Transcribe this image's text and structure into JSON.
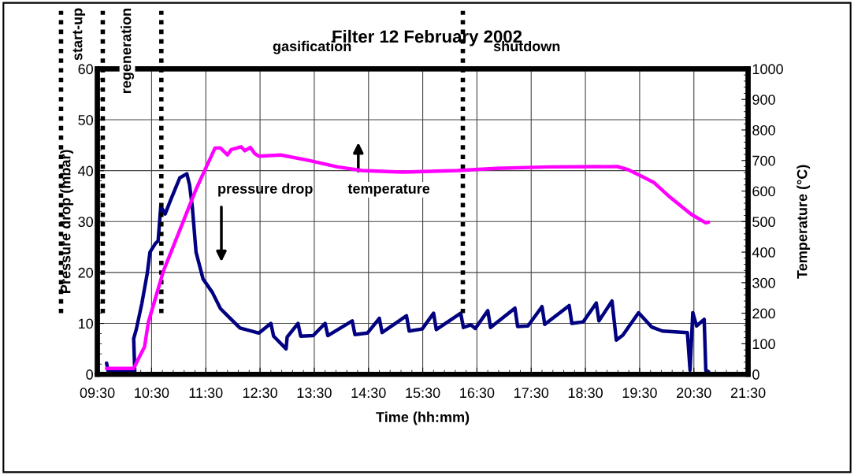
{
  "chart_data": {
    "type": "line",
    "title": "Filter 12 February 2002",
    "xlabel": "Time (hh:mm)",
    "ylabel": "Pressure drop (mbar)",
    "y2label": "Temperature (°C)",
    "xlim": [
      9.5,
      21.5
    ],
    "xticks": [
      {
        "value": 9.5,
        "label": "09:30"
      },
      {
        "value": 10.5,
        "label": "10:30"
      },
      {
        "value": 11.5,
        "label": "11:30"
      },
      {
        "value": 12.5,
        "label": "12:30"
      },
      {
        "value": 13.5,
        "label": "13:30"
      },
      {
        "value": 14.5,
        "label": "14:30"
      },
      {
        "value": 15.5,
        "label": "15:30"
      },
      {
        "value": 16.5,
        "label": "16:30"
      },
      {
        "value": 17.5,
        "label": "17:30"
      },
      {
        "value": 18.5,
        "label": "18:30"
      },
      {
        "value": 19.5,
        "label": "19:30"
      },
      {
        "value": 20.5,
        "label": "20:30"
      },
      {
        "value": 21.5,
        "label": "21:30"
      }
    ],
    "ylim": [
      0,
      60
    ],
    "yticks": [
      0,
      10,
      20,
      30,
      40,
      50,
      60
    ],
    "y2lim": [
      0,
      1000
    ],
    "y2ticks": [
      0,
      100,
      200,
      300,
      400,
      500,
      600,
      700,
      800,
      900,
      1000
    ],
    "grid": true,
    "legend": false,
    "marker": "none",
    "line_style": "solid",
    "series": [
      {
        "color": "#000080",
        "x": [
          9.67,
          9.7,
          9.75,
          10.19,
          10.17,
          10.22,
          10.32,
          10.42,
          10.47,
          10.57,
          10.62,
          10.67,
          10.75,
          10.85,
          11.02,
          11.15,
          11.2,
          11.25,
          11.32,
          11.45,
          11.62,
          11.77,
          11.92,
          12.13,
          12.48,
          12.7,
          12.75,
          12.98,
          13.0,
          13.2,
          13.25,
          13.48,
          13.7,
          13.75,
          14.2,
          14.25,
          14.48,
          14.7,
          14.75,
          15.2,
          15.25,
          15.49,
          15.7,
          15.75,
          16.2,
          16.25,
          16.39,
          16.47,
          16.7,
          16.75,
          17.2,
          17.25,
          17.44,
          17.7,
          17.75,
          18.2,
          18.25,
          18.46,
          18.7,
          18.75,
          18.99,
          19.07,
          19.19,
          19.48,
          19.72,
          19.92,
          20.38,
          20.43,
          20.48,
          20.55,
          20.69,
          20.72,
          20.77
        ],
        "values": [
          2.2,
          0.5,
          0.5,
          0.5,
          7,
          8.9,
          13.9,
          19.8,
          24,
          25.7,
          26.2,
          33,
          31.5,
          34.2,
          38.6,
          39.4,
          37.2,
          33,
          24,
          18.7,
          16.1,
          12.9,
          11.3,
          9.1,
          8.1,
          10,
          7.5,
          5,
          7.3,
          10,
          7.5,
          7.6,
          10,
          7.6,
          10.5,
          7.8,
          8.1,
          11,
          8.2,
          11.5,
          8.5,
          8.9,
          12,
          8.8,
          12,
          9.2,
          9.7,
          9,
          12.5,
          9.2,
          13,
          9.4,
          9.5,
          13.3,
          9.8,
          13.5,
          10,
          10.3,
          14,
          10.5,
          14.4,
          6.7,
          7.7,
          12.1,
          9.3,
          8.5,
          8.2,
          0.8,
          12.1,
          9.5,
          10.8,
          0.8,
          0.5
        ]
      },
      {
        "color": "#ff00ff",
        "axis": "y2",
        "x": [
          9.67,
          10.17,
          10.27,
          10.37,
          10.44,
          10.72,
          11.02,
          11.32,
          11.67,
          11.77,
          11.9,
          11.97,
          12.15,
          12.22,
          12.32,
          12.4,
          12.48,
          12.88,
          13.38,
          13.93,
          14.38,
          15.14,
          16.14,
          16.86,
          17.83,
          19.09,
          19.29,
          19.53,
          19.77,
          20.06,
          20.45,
          20.72,
          20.77
        ],
        "values": [
          19,
          19,
          55,
          90,
          170,
          339,
          472,
          606,
          741,
          741,
          718,
          736,
          745,
          732,
          743,
          723,
          714,
          718,
          701,
          679,
          667,
          662,
          667,
          674,
          679,
          680,
          670,
          649,
          627,
          580,
          524,
          496,
          498
        ]
      }
    ],
    "ref_lines": [
      {
        "axis": "x",
        "value": 8.83,
        "color": "#000000",
        "line_style": "dotted"
      },
      {
        "axis": "x",
        "value": 9.6,
        "color": "#000000",
        "line_style": "dotted"
      },
      {
        "axis": "x",
        "value": 10.68,
        "color": "#000000",
        "line_style": "dotted"
      },
      {
        "axis": "x",
        "value": 16.24,
        "color": "#000000",
        "line_style": "dotted"
      }
    ],
    "annotations": [
      "start-up",
      "regeneration",
      "gasification",
      "shutdown",
      "pressure drop",
      "temperature"
    ]
  }
}
